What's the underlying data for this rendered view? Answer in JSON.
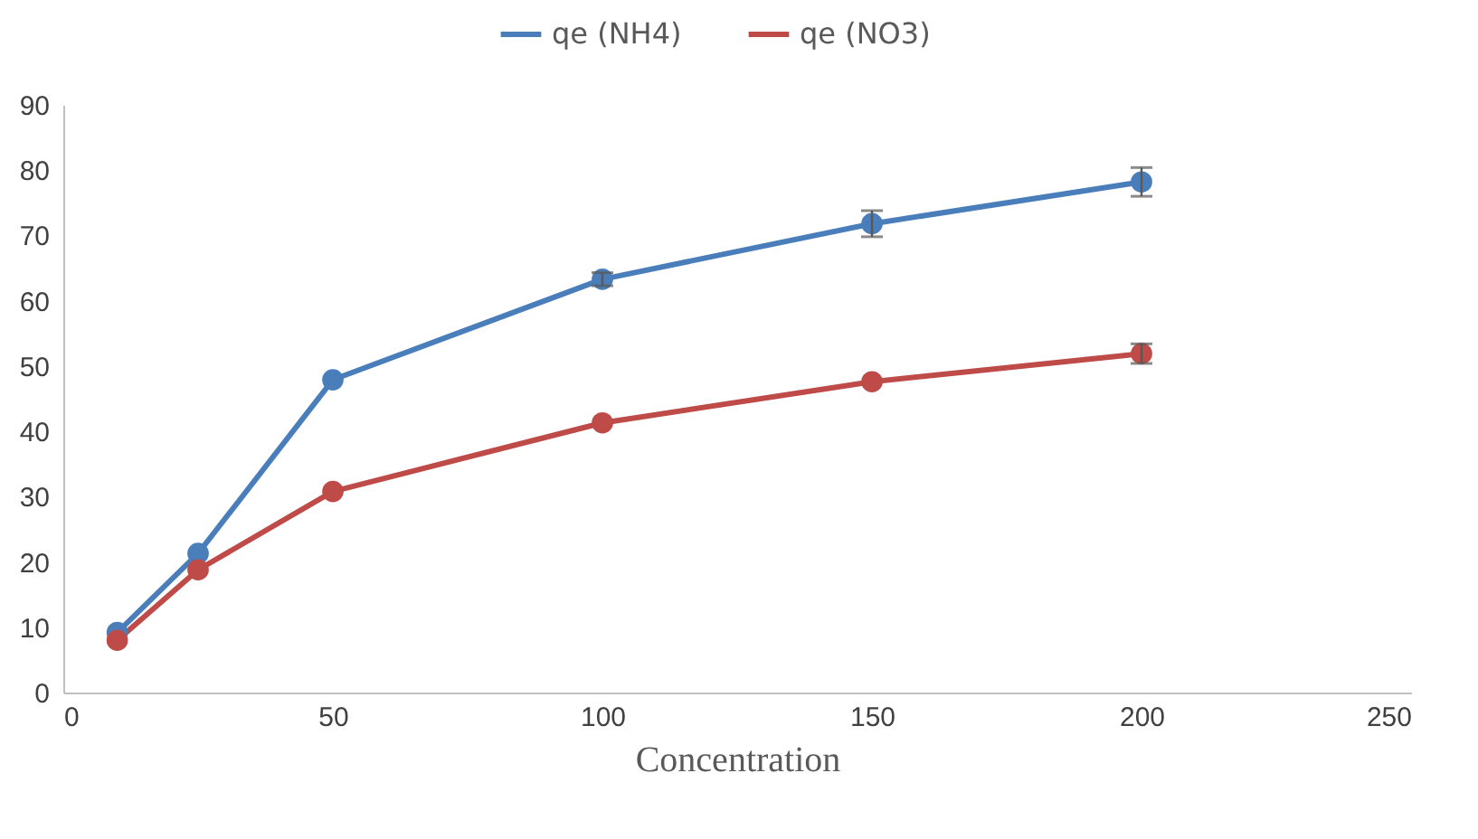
{
  "chart_data": {
    "type": "line",
    "xlabel": "Concentration",
    "x": [
      10,
      25,
      50,
      100,
      150,
      200
    ],
    "series": [
      {
        "name": "qe (NH4)",
        "color": "#4a7ebb",
        "values": [
          9.2,
          21.3,
          47.9,
          63.3,
          71.8,
          78.2
        ],
        "errors": [
          null,
          null,
          null,
          1.0,
          2.0,
          2.2
        ]
      },
      {
        "name": "qe (NO3)",
        "color": "#be4b48",
        "values": [
          8.0,
          18.8,
          30.8,
          41.3,
          47.6,
          51.9
        ],
        "errors": [
          null,
          null,
          null,
          null,
          null,
          1.5
        ]
      }
    ],
    "xlim": [
      0,
      250
    ],
    "xticks": [
      0,
      50,
      100,
      150,
      200,
      250
    ],
    "ylim": [
      0,
      90
    ],
    "yticks": [
      0,
      10,
      20,
      30,
      40,
      50,
      60,
      70,
      80,
      90
    ],
    "grid": false,
    "legend": "top",
    "marker": "circle",
    "line_style": "solid"
  }
}
